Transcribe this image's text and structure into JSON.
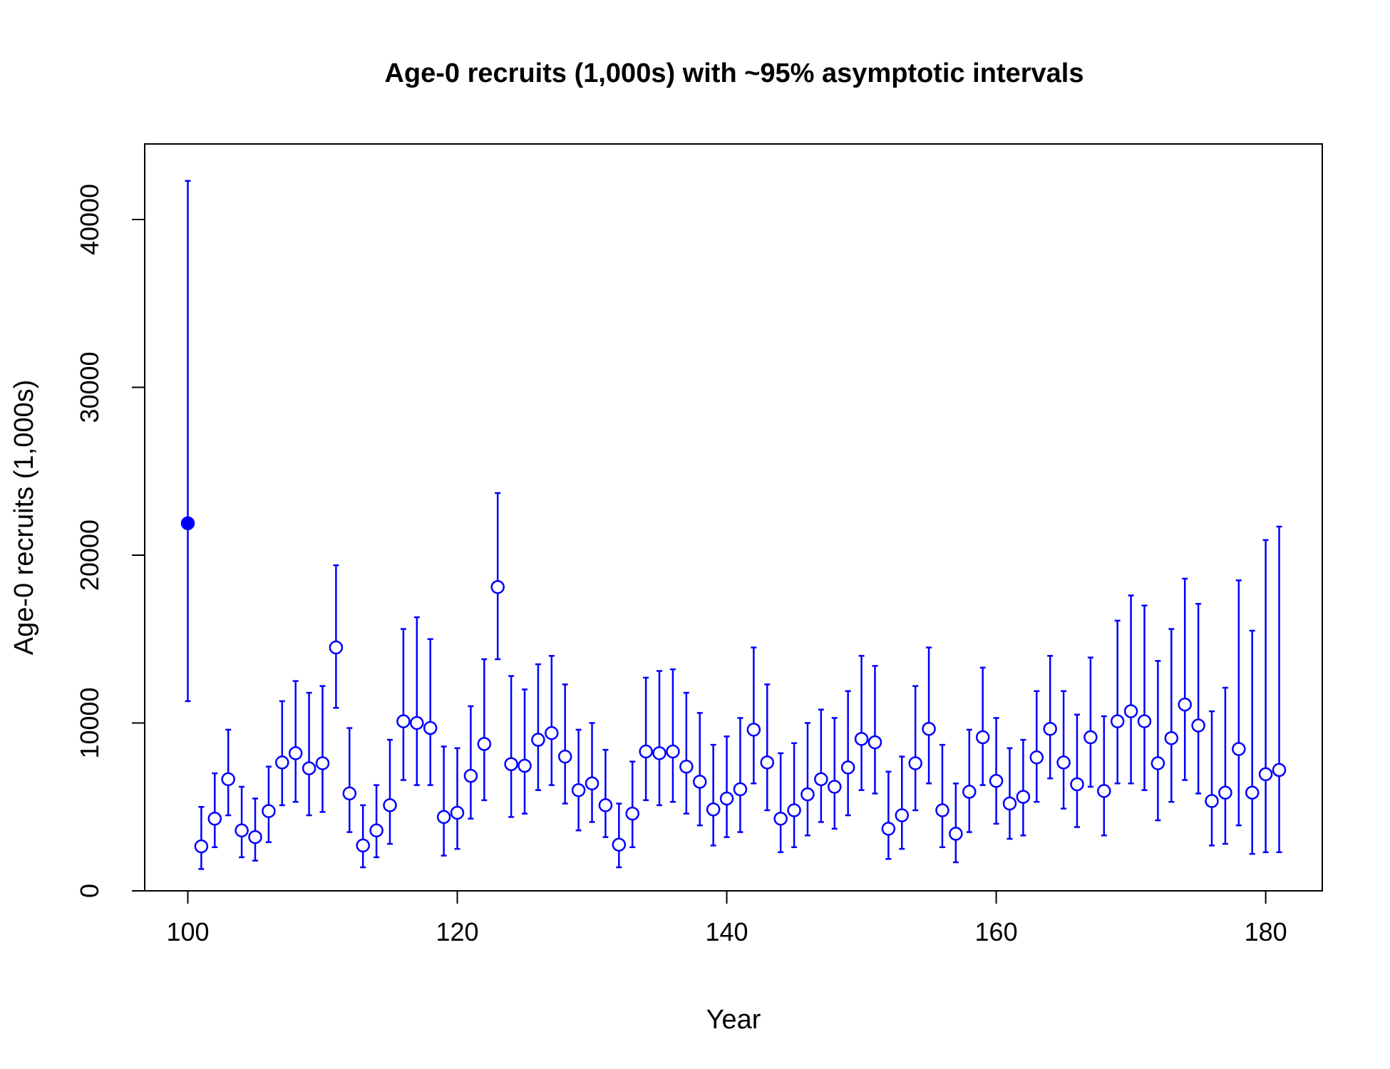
{
  "chart_data": {
    "type": "scatter",
    "title": "Age-0 recruits (1,000s) with ~95% asymptotic intervals",
    "xlabel": "Year",
    "ylabel": "Age-0 recruits (1,000s)",
    "xlim": [
      96.8,
      184.2
    ],
    "ylim": [
      0,
      44500
    ],
    "x_ticks": [
      100,
      120,
      140,
      160,
      180
    ],
    "y_ticks": [
      0,
      10000,
      20000,
      30000,
      40000
    ],
    "marker_color": "#0000ff",
    "filled_first_point": true,
    "x": [
      100,
      101,
      102,
      103,
      104,
      105,
      106,
      107,
      108,
      109,
      110,
      111,
      112,
      113,
      114,
      115,
      116,
      117,
      118,
      119,
      120,
      121,
      122,
      123,
      124,
      125,
      126,
      127,
      128,
      129,
      130,
      131,
      132,
      133,
      134,
      135,
      136,
      137,
      138,
      139,
      140,
      141,
      142,
      143,
      144,
      145,
      146,
      147,
      148,
      149,
      150,
      151,
      152,
      153,
      154,
      155,
      156,
      157,
      158,
      159,
      160,
      161,
      162,
      163,
      164,
      165,
      166,
      167,
      168,
      169,
      170,
      171,
      172,
      173,
      174,
      175,
      176,
      177,
      178,
      179,
      180,
      181
    ],
    "y": [
      21900,
      2650,
      4300,
      6650,
      3600,
      3200,
      4750,
      7650,
      8200,
      7300,
      7600,
      14500,
      5800,
      2700,
      3600,
      5100,
      10100,
      10000,
      9700,
      4400,
      4650,
      6850,
      8750,
      18100,
      7550,
      7450,
      9000,
      9400,
      8000,
      6000,
      6400,
      5100,
      2750,
      4600,
      8300,
      8200,
      8300,
      7400,
      6500,
      4850,
      5500,
      6050,
      9600,
      7650,
      4300,
      4800,
      5750,
      6650,
      6200,
      7350,
      9050,
      8850,
      3700,
      4500,
      7600,
      9650,
      4800,
      3400,
      5900,
      9150,
      6550,
      5200,
      5600,
      7950,
      9650,
      7650,
      6350,
      9150,
      5950,
      10100,
      10700,
      10100,
      7600,
      9100,
      11100,
      9850,
      5350,
      5850,
      8450,
      5850,
      6950,
      7200
    ],
    "lower": [
      11300,
      1300,
      2600,
      4500,
      2000,
      1800,
      2900,
      5100,
      5300,
      4500,
      4700,
      10900,
      3500,
      1400,
      2000,
      2800,
      6600,
      6300,
      6300,
      2100,
      2500,
      4300,
      5400,
      13800,
      4400,
      4600,
      6000,
      6300,
      5200,
      3600,
      4100,
      3200,
      1400,
      2600,
      5400,
      5100,
      5300,
      4600,
      3900,
      2700,
      3200,
      3500,
      6400,
      4800,
      2300,
      2600,
      3300,
      4100,
      3700,
      4500,
      6000,
      5800,
      1900,
      2500,
      4800,
      6400,
      2600,
      1700,
      3500,
      6300,
      4000,
      3100,
      3300,
      5300,
      6700,
      4900,
      3800,
      6200,
      3300,
      6400,
      6400,
      6000,
      4200,
      5300,
      6600,
      5800,
      2700,
      2800,
      3900,
      2200,
      2300,
      2300
    ],
    "upper": [
      42300,
      5000,
      7000,
      9600,
      6200,
      5500,
      7400,
      11300,
      12500,
      11800,
      12200,
      19400,
      9700,
      5100,
      6300,
      9000,
      15600,
      16300,
      15000,
      8600,
      8500,
      11000,
      13800,
      23700,
      12800,
      12000,
      13500,
      14000,
      12300,
      9600,
      10000,
      8400,
      5200,
      7700,
      12700,
      13100,
      13200,
      11800,
      10600,
      8700,
      9200,
      10300,
      14500,
      12300,
      8200,
      8800,
      10000,
      10800,
      10300,
      11900,
      14000,
      13400,
      7100,
      8000,
      12200,
      14500,
      8700,
      6400,
      9600,
      13300,
      10300,
      8500,
      9000,
      11900,
      14000,
      11900,
      10500,
      13900,
      10400,
      16100,
      17600,
      17000,
      13700,
      15600,
      18600,
      17100,
      10700,
      12100,
      18500,
      15500,
      20900,
      21700
    ]
  }
}
